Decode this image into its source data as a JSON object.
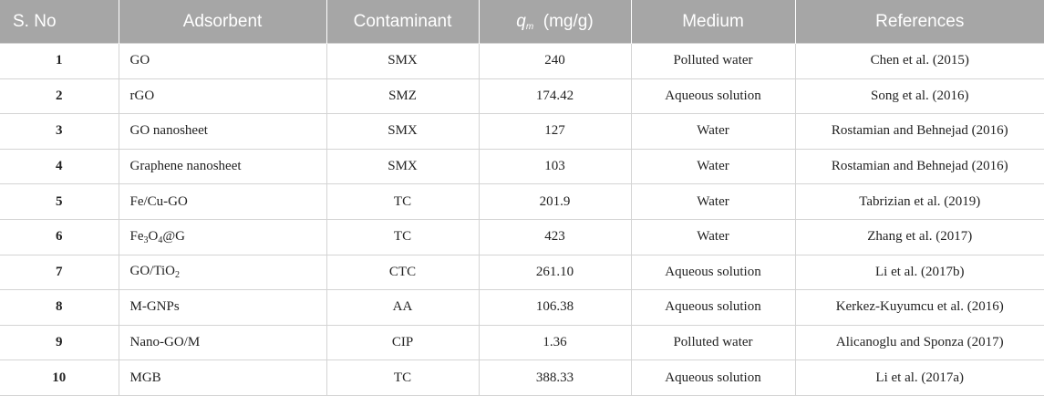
{
  "headers": {
    "sno": "S. No",
    "adsorbent": "Adsorbent",
    "contaminant": "Contaminant",
    "qm_symbol": "q",
    "qm_sub": "m",
    "qm_unit": "(mg/g)",
    "medium": "Medium",
    "references": "References"
  },
  "rows": [
    {
      "sno": "1",
      "ads_pre": "GO",
      "contaminant": "SMX",
      "qm": "240",
      "medium": "Polluted water",
      "reference": "Chen et al. (2015)"
    },
    {
      "sno": "2",
      "ads_pre": "rGO",
      "contaminant": "SMZ",
      "qm": "174.42",
      "medium": "Aqueous solution",
      "reference": "Song et al. (2016)"
    },
    {
      "sno": "3",
      "ads_pre": "GO nanosheet",
      "contaminant": "SMX",
      "qm": "127",
      "medium": "Water",
      "reference": "Rostamian and Behnejad (2016)"
    },
    {
      "sno": "4",
      "ads_pre": "Graphene nanosheet",
      "contaminant": "SMX",
      "qm": "103",
      "medium": "Water",
      "reference": "Rostamian and Behnejad (2016)"
    },
    {
      "sno": "5",
      "ads_pre": "Fe/Cu-GO",
      "contaminant": "TC",
      "qm": "201.9",
      "medium": "Water",
      "reference": "Tabrizian et al. (2019)"
    },
    {
      "sno": "6",
      "ads_pre": "Fe",
      "ads_sub1": "3",
      "ads_mid": "O",
      "ads_sub2": "4",
      "ads_post": "@G",
      "contaminant": "TC",
      "qm": "423",
      "medium": "Water",
      "reference": "Zhang et al. (2017)"
    },
    {
      "sno": "7",
      "ads_pre": "GO/TiO",
      "ads_sub1": "2",
      "contaminant": "CTC",
      "qm": "261.10",
      "medium": "Aqueous solution",
      "reference": "Li et al. (2017b)"
    },
    {
      "sno": "8",
      "ads_pre": "M-GNPs",
      "contaminant": "AA",
      "qm": "106.38",
      "medium": "Aqueous solution",
      "reference": "Kerkez-Kuyumcu et al. (2016)"
    },
    {
      "sno": "9",
      "ads_pre": "Nano-GO/M",
      "contaminant": "CIP",
      "qm": "1.36",
      "medium": "Polluted water",
      "reference": "Alicanoglu and Sponza (2017)"
    },
    {
      "sno": "10",
      "ads_pre": "MGB",
      "contaminant": "TC",
      "qm": "388.33",
      "medium": "Aqueous solution",
      "reference": "Li et al. (2017a)"
    }
  ]
}
